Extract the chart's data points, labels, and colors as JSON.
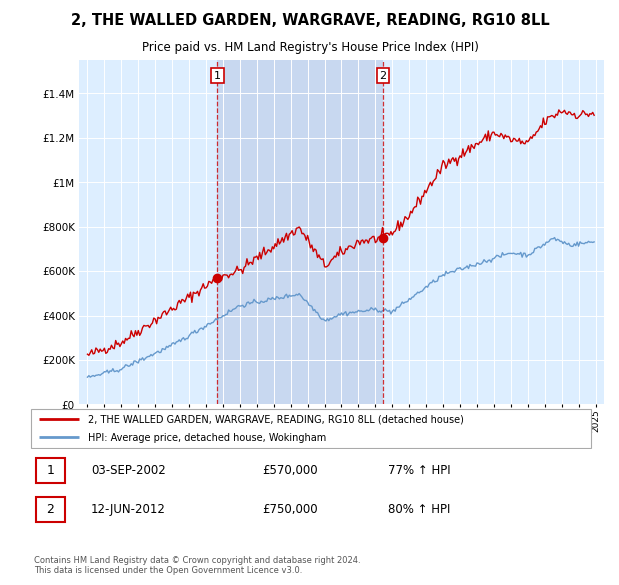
{
  "title": "2, THE WALLED GARDEN, WARGRAVE, READING, RG10 8LL",
  "subtitle": "Price paid vs. HM Land Registry's House Price Index (HPI)",
  "legend_line1": "2, THE WALLED GARDEN, WARGRAVE, READING, RG10 8LL (detached house)",
  "legend_line2": "HPI: Average price, detached house, Wokingham",
  "footer": "Contains HM Land Registry data © Crown copyright and database right 2024.\nThis data is licensed under the Open Government Licence v3.0.",
  "sale1_label": "1",
  "sale1_date": "03-SEP-2002",
  "sale1_price": "£570,000",
  "sale1_hpi": "77% ↑ HPI",
  "sale2_label": "2",
  "sale2_date": "12-JUN-2012",
  "sale2_price": "£750,000",
  "sale2_hpi": "80% ↑ HPI",
  "red_color": "#cc0000",
  "blue_color": "#6699cc",
  "bg_color": "#ddeeff",
  "shade_color": "#c8d8f0",
  "sale1_x": 2002.67,
  "sale1_y": 570000,
  "sale2_x": 2012.45,
  "sale2_y": 750000,
  "vline1_x": 2002.67,
  "vline2_x": 2012.45,
  "ylim": [
    0,
    1550000
  ],
  "xlim": [
    1994.5,
    2025.5
  ],
  "yticks": [
    0,
    200000,
    400000,
    600000,
    800000,
    1000000,
    1200000,
    1400000
  ]
}
